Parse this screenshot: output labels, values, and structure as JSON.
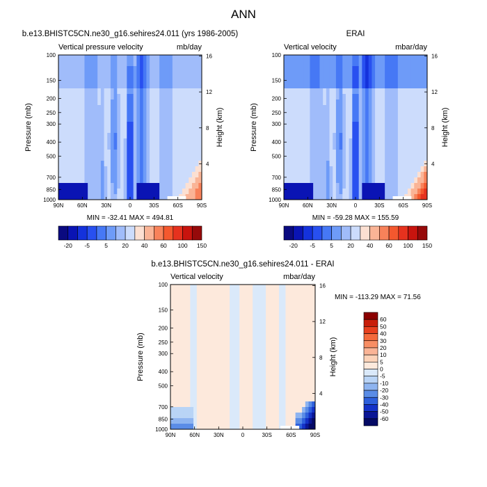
{
  "figure_title": "ANN",
  "chart_data": [
    {
      "type": "heatmap",
      "title": "b.e13.BHISTC5CN.ne30_g16.sehires24.011 (yrs 1986-2005)",
      "left_label": "Vertical pressure velocity",
      "right_label": "mb/day",
      "ylabel": "Pressure (mb)",
      "ylabel_right": "Height (km)",
      "x_ticks": [
        "90N",
        "60N",
        "30N",
        "0",
        "30S",
        "60S",
        "90S"
      ],
      "x_values": [
        90,
        60,
        30,
        0,
        -30,
        -60,
        -90
      ],
      "xlim": [
        90,
        -90
      ],
      "y_ticks": [
        100,
        150,
        200,
        250,
        300,
        400,
        500,
        700,
        850,
        1000
      ],
      "ylim": [
        100,
        1000
      ],
      "y_scale": "log",
      "y_right_ticks": [
        16,
        12,
        8,
        4
      ],
      "stats_text": "MIN = -32.41  MAX = 494.81",
      "legend": "horizontal colorbar below",
      "levels": [
        "-20",
        "-5",
        "5",
        "20",
        "40",
        "60",
        "100",
        "150"
      ],
      "colors": [
        "#0a0a80",
        "#0a14b4",
        "#1432dc",
        "#2850f0",
        "#4678f5",
        "#6e9bf8",
        "#a0bcfa",
        "#ccdcfc",
        "#fce0d2",
        "#fab496",
        "#f8825a",
        "#f4582e",
        "#e6321e",
        "#c8140e",
        "#960a0a"
      ]
    },
    {
      "type": "heatmap",
      "title": "ERAI",
      "left_label": "Vertical velocity",
      "right_label": "mbar/day",
      "ylabel": "Pressure (mb)",
      "ylabel_right": "Height (km)",
      "x_ticks": [
        "90N",
        "60N",
        "30N",
        "0",
        "30S",
        "60S",
        "90S"
      ],
      "x_values": [
        90,
        60,
        30,
        0,
        -30,
        -60,
        -90
      ],
      "xlim": [
        90,
        -90
      ],
      "y_ticks": [
        100,
        150,
        200,
        250,
        300,
        400,
        500,
        700,
        850,
        1000
      ],
      "ylim": [
        100,
        1000
      ],
      "y_scale": "log",
      "y_right_ticks": [
        16,
        12,
        8,
        4
      ],
      "stats_text": "MIN = -59.28  MAX = 155.59",
      "legend": "horizontal colorbar below",
      "levels": [
        "-20",
        "-5",
        "5",
        "20",
        "40",
        "60",
        "100",
        "150"
      ],
      "colors": [
        "#0a0a80",
        "#0a14b4",
        "#1432dc",
        "#2850f0",
        "#4678f5",
        "#6e9bf8",
        "#a0bcfa",
        "#ccdcfc",
        "#fce0d2",
        "#fab496",
        "#f8825a",
        "#f4582e",
        "#e6321e",
        "#c8140e",
        "#960a0a"
      ]
    },
    {
      "type": "heatmap",
      "title": "b.e13.BHISTC5CN.ne30_g16.sehires24.011 - ERAI",
      "left_label": "Vertical velocity",
      "right_label": "mbar/day",
      "ylabel": "Pressure (mb)",
      "ylabel_right": "Height (km)",
      "x_ticks": [
        "90N",
        "60N",
        "30N",
        "0",
        "30S",
        "60S",
        "90S"
      ],
      "x_values": [
        90,
        60,
        30,
        0,
        -30,
        -60,
        -90
      ],
      "xlim": [
        90,
        -90
      ],
      "y_ticks": [
        100,
        150,
        200,
        250,
        300,
        400,
        500,
        700,
        850,
        1000
      ],
      "ylim": [
        100,
        1000
      ],
      "y_scale": "log",
      "y_right_ticks": [
        16,
        12,
        8,
        4
      ],
      "stats_text": "MIN = -113.29  MAX =  71.56",
      "legend": "vertical colorbar right",
      "levels": [
        "60",
        "50",
        "40",
        "30",
        "20",
        "10",
        "5",
        "0",
        "-5",
        "-10",
        "-20",
        "-30",
        "-40",
        "-50",
        "-60"
      ],
      "colors": [
        "#8b0000",
        "#c81e0a",
        "#e8401e",
        "#f46a3c",
        "#f88e64",
        "#fab496",
        "#fcd2b8",
        "#fde9dc",
        "#dae9fa",
        "#b9d4f6",
        "#8eb4f0",
        "#5a8ce6",
        "#2e60dc",
        "#1432c8",
        "#0a1696",
        "#050a64"
      ]
    }
  ]
}
